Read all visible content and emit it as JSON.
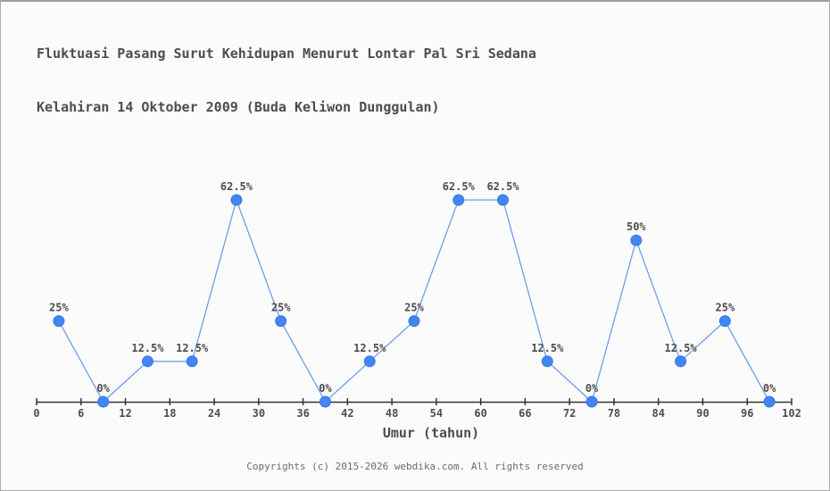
{
  "title": {
    "line1": "Fluktuasi Pasang Surut Kehidupan Menurut Lontar Pal Sri Sedana",
    "line2": "Kelahiran 14 Oktober 2009 (Buda Keliwon Dunggulan)"
  },
  "footer": {
    "text": "Copyrights (c) 2015-2026 webdika.com. All rights reserved"
  },
  "colors": {
    "background": "#fbfbfb",
    "border": "#ababab",
    "line": "#6d9eeb",
    "point_fill": "#4285f4",
    "point_stroke": "#3b78e8",
    "axis": "#333333",
    "text": "#4d4d4d",
    "footer_text": "#6b6b6b"
  },
  "chart_data": {
    "type": "line",
    "title": "Fluktuasi Pasang Surut Kehidupan Menurut Lontar Pal Sri Sedana Kelahiran 14 Oktober 2009 (Buda Keliwon Dunggulan)",
    "xlabel": "Umur (tahun)",
    "ylabel": "",
    "x": [
      3,
      9,
      15,
      21,
      27,
      33,
      39,
      45,
      51,
      57,
      63,
      69,
      75,
      81,
      87,
      93,
      99
    ],
    "values": [
      25,
      0,
      12.5,
      12.5,
      62.5,
      25,
      0,
      12.5,
      25,
      62.5,
      62.5,
      12.5,
      0,
      50,
      12.5,
      25,
      0
    ],
    "point_labels": [
      "25%",
      "0%",
      "12.5%",
      "12.5%",
      "62.5%",
      "25%",
      "0%",
      "12.5%",
      "25%",
      "62.5%",
      "62.5%",
      "12.5%",
      "0%",
      "50%",
      "12.5%",
      "25%",
      "0%"
    ],
    "x_ticks": [
      0,
      6,
      12,
      18,
      24,
      30,
      36,
      42,
      48,
      54,
      60,
      66,
      72,
      78,
      84,
      90,
      96,
      102
    ],
    "xlim": [
      0,
      102
    ],
    "ylim": [
      0,
      70
    ],
    "grid": false,
    "legend": null,
    "y_axis_shown": false
  }
}
